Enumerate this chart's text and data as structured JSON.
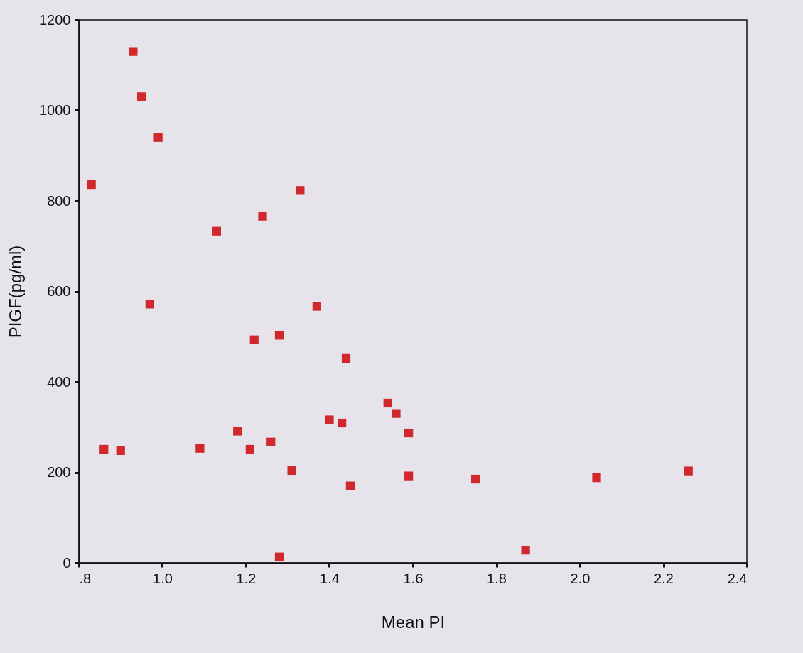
{
  "chart_data": {
    "type": "scatter",
    "xlabel": "Mean PI",
    "ylabel": "PIGF(pg/ml)",
    "marker": "square",
    "grid": false,
    "xlim": [
      0.8,
      2.4
    ],
    "ylim": [
      0,
      1200
    ],
    "xticks": [
      {
        "value": 0.8,
        "label": ".8"
      },
      {
        "value": 1,
        "label": "1.0"
      },
      {
        "value": 1.2,
        "label": "1.2"
      },
      {
        "value": 1.4,
        "label": "1.4"
      },
      {
        "value": 1.6,
        "label": "1.6"
      },
      {
        "value": 1.8,
        "label": "1.8"
      },
      {
        "value": 2,
        "label": "2.0"
      },
      {
        "value": 2.2,
        "label": "2.2"
      },
      {
        "value": 2.4,
        "label": "2.4"
      }
    ],
    "yticks": [
      0,
      200,
      400,
      600,
      800,
      1000,
      1200
    ],
    "x": [
      0.93,
      0.95,
      0.99,
      0.83,
      1.13,
      1.24,
      1.33,
      0.97,
      1.37,
      1.22,
      1.28,
      1.44,
      1.54,
      1.56,
      1.4,
      1.43,
      1.59,
      0.86,
      0.9,
      1.09,
      1.18,
      1.21,
      1.26,
      1.31,
      1.45,
      1.59,
      1.75,
      2.04,
      2.26,
      1.28,
      1.87
    ],
    "series": [
      {
        "color": "#d0282c",
        "values": [
          1130,
          1030,
          940,
          836,
          733,
          766,
          823,
          572,
          567,
          493,
          503,
          452,
          353,
          330,
          316,
          309,
          287,
          251,
          248,
          253,
          291,
          251,
          267,
          204,
          170,
          192,
          185,
          188,
          203,
          13,
          28
        ]
      }
    ]
  }
}
